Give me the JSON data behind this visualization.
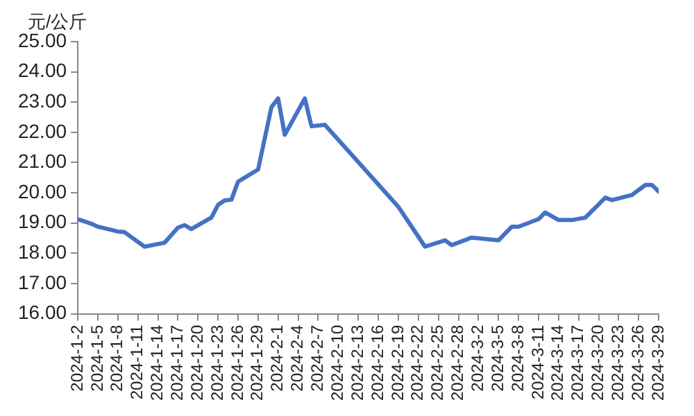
{
  "chart_data": {
    "type": "line",
    "ylabel": "元/公斤",
    "x": [
      "2024-01-02",
      "2024-01-04",
      "2024-01-05",
      "2024-01-08",
      "2024-01-09",
      "2024-01-12",
      "2024-01-15",
      "2024-01-17",
      "2024-01-18",
      "2024-01-19",
      "2024-01-22",
      "2024-01-23",
      "2024-01-24",
      "2024-01-25",
      "2024-01-26",
      "2024-01-29",
      "2024-01-31",
      "2024-02-01",
      "2024-02-02",
      "2024-02-05",
      "2024-02-06",
      "2024-02-08",
      "2024-02-19",
      "2024-02-23",
      "2024-02-26",
      "2024-02-27",
      "2024-03-01",
      "2024-03-05",
      "2024-03-07",
      "2024-03-08",
      "2024-03-11",
      "2024-03-12",
      "2024-03-14",
      "2024-03-16",
      "2024-03-18",
      "2024-03-21",
      "2024-03-22",
      "2024-03-25",
      "2024-03-27",
      "2024-03-28",
      "2024-03-29"
    ],
    "series": [
      {
        "color": "#4472c4",
        "values": [
          19.13,
          18.98,
          18.88,
          18.72,
          18.7,
          18.22,
          18.35,
          18.85,
          18.93,
          18.8,
          19.18,
          19.6,
          19.75,
          19.77,
          20.37,
          20.77,
          22.83,
          23.12,
          21.92,
          23.12,
          22.2,
          22.25,
          19.54,
          18.22,
          18.43,
          18.27,
          18.52,
          18.43,
          18.88,
          18.88,
          19.13,
          19.35,
          19.1,
          19.1,
          19.18,
          19.84,
          19.76,
          19.93,
          20.26,
          20.26,
          20.04
        ]
      }
    ],
    "xlim": [
      "2024-01-02",
      "2024-03-29"
    ],
    "xticks": [
      {
        "value": "2024-01-02",
        "label": "2024-1-2"
      },
      {
        "value": "2024-01-05",
        "label": "2024-1-5"
      },
      {
        "value": "2024-01-08",
        "label": "2024-1-8"
      },
      {
        "value": "2024-01-11",
        "label": "2024-1-11"
      },
      {
        "value": "2024-01-14",
        "label": "2024-1-14"
      },
      {
        "value": "2024-01-17",
        "label": "2024-1-17"
      },
      {
        "value": "2024-01-20",
        "label": "2024-1-20"
      },
      {
        "value": "2024-01-23",
        "label": "2024-1-23"
      },
      {
        "value": "2024-01-26",
        "label": "2024-1-26"
      },
      {
        "value": "2024-01-29",
        "label": "2024-1-29"
      },
      {
        "value": "2024-02-01",
        "label": "2024-2-1"
      },
      {
        "value": "2024-02-04",
        "label": "2024-2-4"
      },
      {
        "value": "2024-02-07",
        "label": "2024-2-7"
      },
      {
        "value": "2024-02-10",
        "label": "2024-2-10"
      },
      {
        "value": "2024-02-13",
        "label": "2024-2-13"
      },
      {
        "value": "2024-02-16",
        "label": "2024-2-16"
      },
      {
        "value": "2024-02-19",
        "label": "2024-2-19"
      },
      {
        "value": "2024-02-22",
        "label": "2024-2-22"
      },
      {
        "value": "2024-02-25",
        "label": "2024-2-25"
      },
      {
        "value": "2024-02-28",
        "label": "2024-2-28"
      },
      {
        "value": "2024-03-02",
        "label": "2024-3-2"
      },
      {
        "value": "2024-03-05",
        "label": "2024-3-5"
      },
      {
        "value": "2024-03-08",
        "label": "2024-3-8"
      },
      {
        "value": "2024-03-11",
        "label": "2024-3-11"
      },
      {
        "value": "2024-03-14",
        "label": "2024-3-14"
      },
      {
        "value": "2024-03-17",
        "label": "2024-3-17"
      },
      {
        "value": "2024-03-20",
        "label": "2024-3-20"
      },
      {
        "value": "2024-03-23",
        "label": "2024-3-23"
      },
      {
        "value": "2024-03-26",
        "label": "2024-3-26"
      },
      {
        "value": "2024-03-29",
        "label": "2024-3-29"
      }
    ],
    "ylim": [
      16,
      25
    ],
    "yticks": [
      {
        "value": 16,
        "label": "16.00"
      },
      {
        "value": 17,
        "label": "17.00"
      },
      {
        "value": 18,
        "label": "18.00"
      },
      {
        "value": 19,
        "label": "19.00"
      },
      {
        "value": 20,
        "label": "20.00"
      },
      {
        "value": 21,
        "label": "21.00"
      },
      {
        "value": 22,
        "label": "22.00"
      },
      {
        "value": 23,
        "label": "23.00"
      },
      {
        "value": 24,
        "label": "24.00"
      },
      {
        "value": 25,
        "label": "25.00"
      }
    ],
    "grid": false,
    "legend": false,
    "marker": "none",
    "line_style": "solid"
  }
}
